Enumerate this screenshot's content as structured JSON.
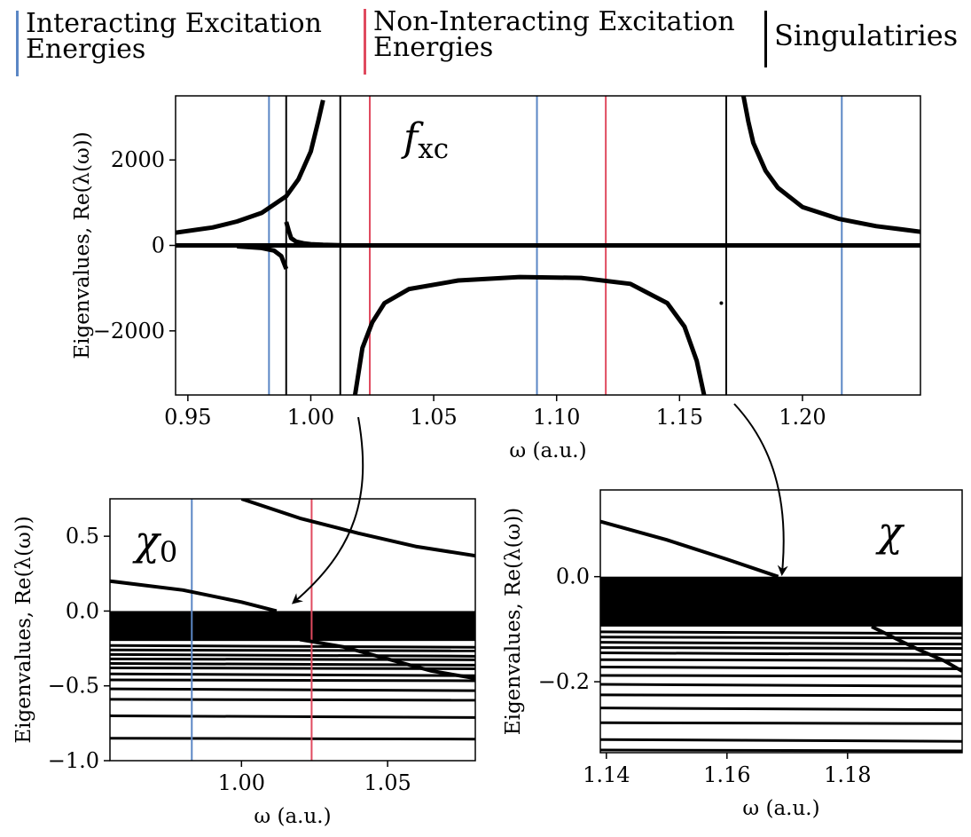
{
  "legend": [
    {
      "label": "Interacting Excitation\nEnergies",
      "color": "#5b87c5"
    },
    {
      "label": "Non-Interacting Excitation\nEnergies",
      "color": "#e04a5f"
    },
    {
      "label": "Singulatiries",
      "color": "#000000"
    }
  ],
  "colors": {
    "interacting": "#5b87c5",
    "noninteracting": "#e04a5f",
    "singularity": "#000000",
    "curve": "#000000"
  },
  "chart_data": [
    {
      "id": "fxc",
      "type": "line",
      "panel_label": "f",
      "panel_label_sub": "xc",
      "xlabel": "ω (a.u.)",
      "ylabel": "Eigenvalues, Re(λ(ω))",
      "xlim": [
        0.945,
        1.248
      ],
      "ylim": [
        -3500,
        3500
      ],
      "xticks": [
        0.95,
        1.0,
        1.05,
        1.1,
        1.15,
        1.2
      ],
      "xtick_labels": [
        "0.95",
        "1.00",
        "1.05",
        "1.10",
        "1.15",
        "1.20"
      ],
      "yticks": [
        2000,
        0,
        -2000
      ],
      "ytick_labels": [
        "2000",
        "0",
        "−2000"
      ],
      "interacting_lines": [
        0.983,
        1.092,
        1.216
      ],
      "noninteracting_lines": [
        1.024,
        1.12
      ],
      "singularity_lines": [
        0.99,
        1.012,
        1.169
      ],
      "series": [
        {
          "x": [
            0.945,
            0.96,
            0.97,
            0.98,
            0.99,
            0.995,
            1.0,
            1.003,
            1.005
          ],
          "y": [
            300,
            420,
            560,
            760,
            1150,
            1550,
            2200,
            2900,
            3400
          ]
        },
        {
          "x": [
            0.945,
            1.248
          ],
          "y": [
            0,
            0
          ]
        },
        {
          "x": [
            0.99,
            0.991,
            0.992,
            0.994,
            0.997,
            1.0,
            1.005,
            1.012
          ],
          "y": [
            550,
            350,
            170,
            90,
            50,
            30,
            15,
            5
          ]
        },
        {
          "x": [
            0.97,
            0.98,
            0.985,
            0.988,
            0.989,
            0.99
          ],
          "y": [
            -20,
            -60,
            -120,
            -250,
            -400,
            -550
          ]
        },
        {
          "x": [
            1.018,
            1.021,
            1.025,
            1.03,
            1.04,
            1.06,
            1.085,
            1.11,
            1.13,
            1.145,
            1.152,
            1.157,
            1.16
          ],
          "y": [
            -3500,
            -2400,
            -1800,
            -1350,
            -1020,
            -820,
            -740,
            -760,
            -900,
            -1350,
            -1900,
            -2700,
            -3500
          ]
        },
        {
          "x": [
            1.176,
            1.178,
            1.18,
            1.185,
            1.19,
            1.2,
            1.215,
            1.23,
            1.248
          ],
          "y": [
            3500,
            2900,
            2400,
            1750,
            1350,
            900,
            620,
            450,
            320
          ]
        },
        {
          "x": [
            1.167
          ],
          "y": [
            -1350
          ]
        }
      ]
    },
    {
      "id": "chi0",
      "type": "line",
      "panel_label": "χ",
      "panel_label_sub": "0",
      "xlabel": "ω (a.u.)",
      "ylabel": "Eigenvalues, Re(λ(ω))",
      "xlim": [
        0.955,
        1.08
      ],
      "ylim": [
        -1.0,
        0.75
      ],
      "xticks": [
        1.0,
        1.05
      ],
      "xtick_labels": [
        "1.00",
        "1.05"
      ],
      "yticks": [
        0.5,
        0.0,
        -0.5,
        -1.0
      ],
      "ytick_labels": [
        "0.5",
        "0.0",
        "−0.5",
        "−1.0"
      ],
      "interacting_lines": [
        0.983
      ],
      "noninteracting_lines": [
        1.024
      ],
      "singularity_lines": [],
      "band": {
        "y_top": 0.0,
        "y_bottom": -0.2
      },
      "series": [
        {
          "x": [
            0.955,
            0.98,
            1.0,
            1.012
          ],
          "y": [
            0.2,
            0.14,
            0.06,
            0.0
          ]
        },
        {
          "x": [
            1.0,
            1.02,
            1.04,
            1.06,
            1.08
          ],
          "y": [
            0.75,
            0.62,
            0.52,
            0.43,
            0.37
          ]
        },
        {
          "x": [
            1.02,
            1.035,
            1.05,
            1.065,
            1.08
          ],
          "y": [
            -0.19,
            -0.24,
            -0.32,
            -0.4,
            -0.45
          ]
        }
      ],
      "flat_levels": [
        -0.23,
        -0.26,
        -0.29,
        -0.32,
        -0.35,
        -0.38,
        -0.42,
        -0.46,
        -0.52,
        -0.59,
        -0.7,
        -0.85
      ]
    },
    {
      "id": "chi",
      "type": "line",
      "panel_label": "χ",
      "panel_label_sub": "",
      "xlabel": "ω (a.u.)",
      "ylabel": "Eigenvalues, Re(λ(ω))",
      "xlim": [
        1.139,
        1.199
      ],
      "ylim": [
        -0.335,
        0.165
      ],
      "xticks": [
        1.14,
        1.16,
        1.18
      ],
      "xtick_labels": [
        "1.14",
        "1.16",
        "1.18"
      ],
      "yticks": [
        0.0,
        -0.2
      ],
      "ytick_labels": [
        "0.0",
        "−0.2"
      ],
      "interacting_lines": [],
      "noninteracting_lines": [],
      "singularity_lines": [],
      "band": {
        "y_top": 0.0,
        "y_bottom": -0.095
      },
      "series": [
        {
          "x": [
            1.139,
            1.15,
            1.16,
            1.1685
          ],
          "y": [
            0.105,
            0.07,
            0.033,
            0.0
          ]
        },
        {
          "x": [
            1.184,
            1.188,
            1.192,
            1.196,
            1.199
          ],
          "y": [
            -0.095,
            -0.118,
            -0.14,
            -0.16,
            -0.18
          ]
        }
      ],
      "flat_levels": [
        -0.105,
        -0.115,
        -0.125,
        -0.135,
        -0.145,
        -0.158,
        -0.172,
        -0.188,
        -0.205,
        -0.225,
        -0.25,
        -0.278,
        -0.31,
        -0.33
      ]
    }
  ]
}
